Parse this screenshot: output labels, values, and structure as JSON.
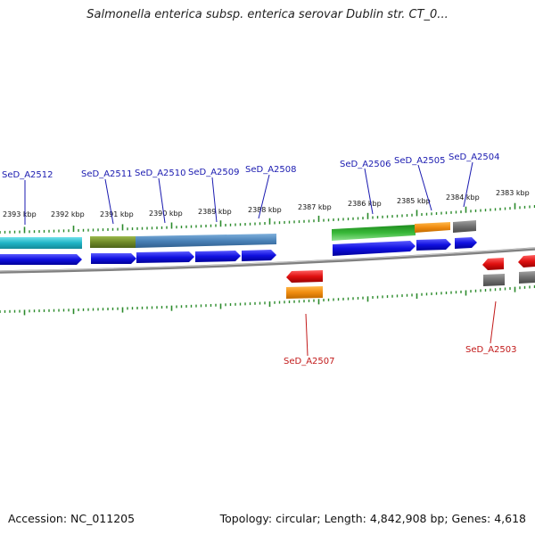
{
  "title": "Salmonella enterica subsp. enterica serovar Dublin str. CT_0...",
  "footer": {
    "accession": "Accession: NC_011205",
    "summary": "Topology: circular; Length: 4,842,908 bp; Genes: 4,618"
  },
  "ticks": [
    "2393 kbp",
    "2392 kbp",
    "2391 kbp",
    "2390 kbp",
    "2389 kbp",
    "2388 kbp",
    "2387 kbp",
    "2386 kbp",
    "2385 kbp",
    "2384 kbp",
    "2383 kbp"
  ],
  "genes_top": [
    "SeD_A2512",
    "SeD_A2511",
    "SeD_A2510",
    "SeD_A2509",
    "SeD_A2508",
    "SeD_A2506",
    "SeD_A2505",
    "SeD_A2504"
  ],
  "genes_bottom": [
    "SeD_A2507",
    "SeD_A2503"
  ],
  "colors": {
    "forward_cds": "#1010e0",
    "reverse_cds": "#e01010",
    "cyan_feature": "#22b8c8",
    "olive_feature": "#6f8a28",
    "steel_feature": "#4a82b8",
    "green_feature": "#2ea82e",
    "orange_feature": "#f08c10",
    "gray_feature": "#707070",
    "backbone": "#808080",
    "tick": "#2a8a2a"
  }
}
